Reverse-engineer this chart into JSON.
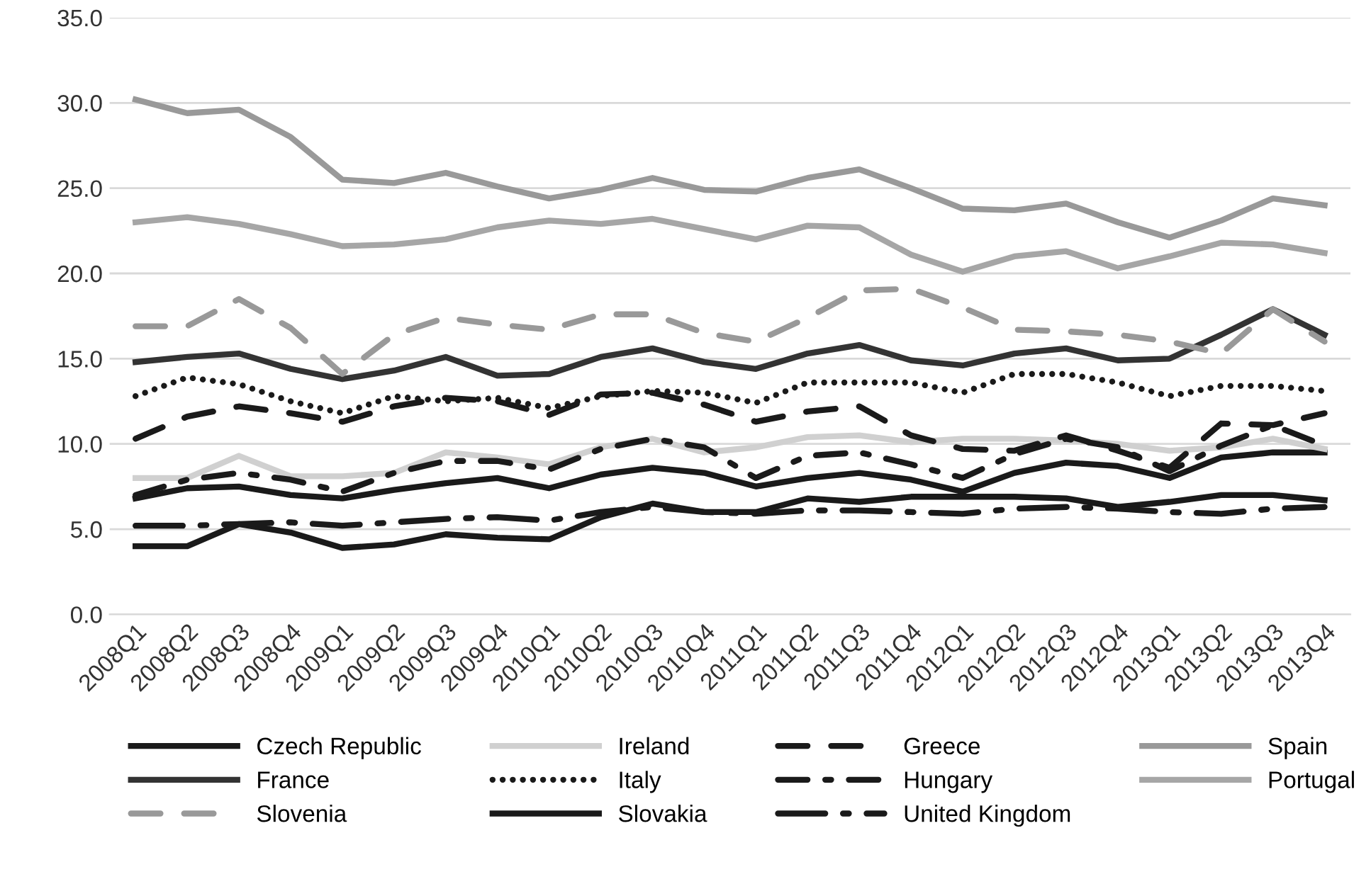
{
  "chart_data": {
    "type": "line",
    "categories": [
      "2008Q1",
      "2008Q2",
      "2008Q3",
      "2008Q4",
      "2009Q1",
      "2009Q2",
      "2009Q3",
      "2009Q4",
      "2010Q1",
      "2010Q2",
      "2010Q3",
      "2010Q4",
      "2011Q1",
      "2011Q2",
      "2011Q3",
      "2011Q4",
      "2012Q1",
      "2012Q2",
      "2012Q3",
      "2012Q4",
      "2013Q1",
      "2013Q2",
      "2013Q3",
      "2013Q4"
    ],
    "ylim": [
      0,
      35
    ],
    "yticks": [
      {
        "value": 0,
        "label": "0.0"
      },
      {
        "value": 5,
        "label": "5.0"
      },
      {
        "value": 10,
        "label": "10.0"
      },
      {
        "value": 15,
        "label": "15.0"
      },
      {
        "value": 20,
        "label": "20.0"
      },
      {
        "value": 25,
        "label": "25.0"
      },
      {
        "value": 30,
        "label": "30.0"
      },
      {
        "value": 35,
        "label": "35.0"
      }
    ],
    "grid": "y",
    "legend": "bottom",
    "marker": "none",
    "series": [
      {
        "name": "Czech Republic",
        "color": "#1a1a1a",
        "line_style": "solid",
        "values": [
          6.8,
          7.4,
          7.5,
          7.0,
          6.8,
          7.3,
          7.7,
          8.0,
          7.4,
          8.2,
          8.6,
          8.3,
          7.5,
          8.0,
          8.3,
          7.9,
          7.2,
          8.3,
          8.9,
          8.7,
          8.0,
          9.2,
          9.5,
          9.5
        ]
      },
      {
        "name": "Ireland",
        "color": "#d0d0d0",
        "line_style": "solid",
        "values": [
          8.0,
          8.0,
          9.3,
          8.1,
          8.1,
          8.3,
          9.5,
          9.2,
          8.8,
          9.8,
          10.3,
          9.5,
          9.8,
          10.4,
          10.5,
          10.1,
          10.3,
          10.3,
          10.2,
          10.0,
          9.6,
          9.8,
          10.3,
          9.7
        ]
      },
      {
        "name": "Greece",
        "color": "#1a1a1a",
        "line_style": "dashed",
        "values": [
          10.3,
          11.6,
          12.2,
          11.8,
          11.3,
          12.2,
          12.7,
          12.5,
          11.7,
          12.9,
          13.0,
          12.3,
          11.3,
          11.9,
          12.2,
          10.5,
          9.7,
          9.6,
          10.5,
          9.6,
          8.6,
          11.2,
          11.1,
          11.8
        ]
      },
      {
        "name": "Spain",
        "color": "#999999",
        "line_style": "solid",
        "values": [
          30.2,
          29.4,
          29.6,
          28.0,
          25.5,
          25.3,
          25.9,
          25.1,
          24.4,
          24.9,
          25.6,
          24.9,
          24.8,
          25.6,
          26.1,
          25.0,
          23.8,
          23.7,
          24.1,
          23.0,
          22.1,
          23.1,
          24.4,
          24.0
        ]
      },
      {
        "name": "France",
        "color": "#333333",
        "line_style": "solid",
        "values": [
          14.8,
          15.1,
          15.3,
          14.4,
          13.8,
          14.3,
          15.1,
          14.0,
          14.1,
          15.1,
          15.6,
          14.8,
          14.4,
          15.3,
          15.8,
          14.9,
          14.6,
          15.3,
          15.6,
          14.9,
          15.0,
          16.4,
          17.9,
          16.4
        ]
      },
      {
        "name": "Italy",
        "color": "#1a1a1a",
        "line_style": "dotted",
        "values": [
          12.8,
          13.9,
          13.5,
          12.5,
          11.8,
          12.8,
          12.5,
          12.7,
          12.1,
          12.8,
          13.1,
          13.0,
          12.4,
          13.6,
          13.6,
          13.6,
          13.0,
          14.1,
          14.1,
          13.6,
          12.8,
          13.4,
          13.4,
          13.1
        ]
      },
      {
        "name": "Hungary",
        "color": "#1a1a1a",
        "line_style": "dashdot",
        "values": [
          7.0,
          7.9,
          8.3,
          7.9,
          7.2,
          8.3,
          9.0,
          9.0,
          8.5,
          9.7,
          10.3,
          9.8,
          8.0,
          9.3,
          9.5,
          8.8,
          8.0,
          9.4,
          10.3,
          9.8,
          8.4,
          9.9,
          11.1,
          9.9
        ]
      },
      {
        "name": "Portugal",
        "color": "#a6a6a6",
        "line_style": "solid",
        "values": [
          23.0,
          23.3,
          22.9,
          22.3,
          21.6,
          21.7,
          22.0,
          22.7,
          23.1,
          22.9,
          23.2,
          22.6,
          22.0,
          22.8,
          22.7,
          21.1,
          20.1,
          21.0,
          21.3,
          20.3,
          21.0,
          21.8,
          21.7,
          21.2
        ]
      },
      {
        "name": "Slovenia",
        "color": "#999999",
        "line_style": "dashed",
        "values": [
          16.9,
          16.9,
          18.5,
          16.8,
          14.1,
          16.4,
          17.4,
          17.0,
          16.7,
          17.6,
          17.6,
          16.5,
          16.0,
          17.4,
          19.0,
          19.1,
          18.0,
          16.7,
          16.6,
          16.4,
          16.0,
          15.3,
          17.9,
          16.0
        ]
      },
      {
        "name": "Slovakia",
        "color": "#1a1a1a",
        "line_style": "solid",
        "values": [
          4.0,
          4.0,
          5.3,
          4.8,
          3.9,
          4.1,
          4.7,
          4.5,
          4.4,
          5.7,
          6.5,
          6.0,
          6.0,
          6.8,
          6.6,
          6.9,
          6.9,
          6.9,
          6.8,
          6.3,
          6.6,
          7.0,
          7.0,
          6.7
        ]
      },
      {
        "name": "United Kingdom",
        "color": "#1a1a1a",
        "line_style": "longdashdot",
        "values": [
          5.2,
          5.2,
          5.3,
          5.4,
          5.2,
          5.4,
          5.6,
          5.7,
          5.5,
          6.0,
          6.3,
          6.0,
          5.9,
          6.1,
          6.1,
          6.0,
          5.9,
          6.2,
          6.3,
          6.2,
          6.0,
          5.9,
          6.2,
          6.3
        ]
      }
    ]
  }
}
